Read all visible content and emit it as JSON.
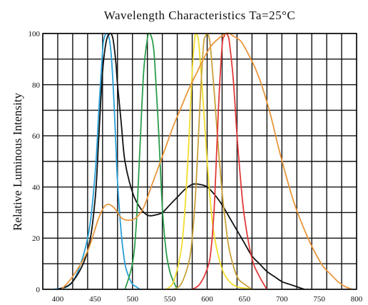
{
  "chart_data": {
    "type": "line",
    "title": "Wavelength Characteristics Ta=25°C",
    "xlabel": "",
    "ylabel": "Relative Luminous Intensity",
    "xlim": [
      380,
      800
    ],
    "ylim": [
      0,
      100
    ],
    "x_gridlines": [
      380,
      400,
      420,
      440,
      460,
      480,
      500,
      520,
      540,
      560,
      580,
      600,
      620,
      640,
      660,
      680,
      700,
      720,
      740,
      760,
      780,
      800
    ],
    "x_ticks": [
      {
        "value": 400,
        "label": "400"
      },
      {
        "value": 450,
        "label": "450"
      },
      {
        "value": 500,
        "label": "500"
      },
      {
        "value": 550,
        "label": "550"
      },
      {
        "value": 600,
        "label": "600"
      },
      {
        "value": 650,
        "label": "650"
      },
      {
        "value": 700,
        "label": "700"
      },
      {
        "value": 750,
        "label": "750"
      },
      {
        "value": 800,
        "label": "800"
      }
    ],
    "y_gridlines": [
      0,
      10,
      20,
      30,
      40,
      50,
      60,
      70,
      80,
      90,
      100
    ],
    "y_ticks": [
      {
        "value": 0,
        "label": "0"
      },
      {
        "value": 20,
        "label": "20"
      },
      {
        "value": 40,
        "label": "40"
      },
      {
        "value": 60,
        "label": "60"
      },
      {
        "value": 80,
        "label": "80"
      },
      {
        "value": 100,
        "label": "100"
      }
    ],
    "grid": true,
    "series": [
      {
        "color": "#2a9fd6",
        "x": [
          395,
          420,
          440,
          450,
          455,
          460,
          462,
          465,
          468,
          470,
          472,
          475,
          478,
          480,
          485,
          490,
          495,
          500,
          505,
          510
        ],
        "y": [
          0,
          3,
          20,
          45,
          70,
          93,
          98,
          100,
          99,
          96,
          90,
          75,
          55,
          42,
          22,
          10,
          5,
          2,
          1,
          0
        ]
      },
      {
        "color": "#111111",
        "x": [
          400,
          420,
          440,
          450,
          455,
          460,
          465,
          470,
          473,
          475,
          478,
          480,
          485,
          490,
          500,
          510,
          520,
          530,
          540,
          550,
          560,
          570,
          580,
          590,
          600,
          610,
          620,
          630,
          640,
          650,
          660,
          670,
          680,
          690,
          700,
          710,
          720,
          730
        ],
        "y": [
          0,
          3,
          15,
          35,
          60,
          85,
          97,
          100,
          99,
          96,
          88,
          80,
          65,
          50,
          38,
          32,
          29,
          29,
          30,
          33,
          36,
          39,
          41,
          41,
          40,
          37,
          33,
          28,
          23,
          18,
          13,
          10,
          7,
          5,
          3,
          2,
          1,
          0
        ]
      },
      {
        "color": "#2a9d4a",
        "x": [
          490,
          500,
          505,
          510,
          515,
          520,
          522,
          525,
          528,
          530,
          535,
          540,
          545,
          550,
          555,
          560
        ],
        "y": [
          0,
          10,
          25,
          55,
          85,
          98,
          100,
          99,
          95,
          88,
          62,
          32,
          15,
          7,
          3,
          0
        ]
      },
      {
        "color": "#f2dd2c",
        "x": [
          545,
          555,
          565,
          570,
          575,
          580,
          583,
          585,
          588,
          590,
          595,
          600,
          605,
          610,
          620,
          630,
          640,
          650,
          660
        ],
        "y": [
          0,
          3,
          15,
          30,
          55,
          85,
          97,
          100,
          98,
          92,
          72,
          50,
          32,
          20,
          8,
          3,
          1,
          0.5,
          0
        ]
      },
      {
        "color": "#c9a13a",
        "x": [
          555,
          565,
          575,
          580,
          585,
          590,
          595,
          598,
          600,
          603,
          605,
          610,
          615,
          620,
          625,
          630,
          640,
          650,
          660
        ],
        "y": [
          0,
          2,
          10,
          20,
          40,
          70,
          95,
          99,
          100,
          98,
          93,
          75,
          55,
          38,
          25,
          15,
          5,
          2,
          0
        ]
      },
      {
        "color": "#e23a3a",
        "x": [
          580,
          590,
          600,
          605,
          610,
          615,
          620,
          623,
          625,
          628,
          630,
          635,
          640,
          645,
          650,
          660,
          670,
          680
        ],
        "y": [
          0,
          2,
          8,
          15,
          35,
          70,
          95,
          99,
          100,
          99,
          96,
          82,
          60,
          42,
          28,
          12,
          5,
          0
        ]
      },
      {
        "color": "#e8963a",
        "x": [
          405,
          420,
          440,
          455,
          465,
          475,
          485,
          495,
          505,
          515,
          525,
          535,
          545,
          555,
          565,
          575,
          585,
          595,
          605,
          615,
          625,
          630,
          635,
          645,
          655,
          665,
          675,
          685,
          695,
          705,
          715,
          725,
          735,
          745,
          755,
          765,
          775,
          785,
          795
        ],
        "y": [
          0,
          5,
          15,
          28,
          33,
          32,
          28,
          27,
          28,
          32,
          40,
          48,
          56,
          64,
          71,
          78,
          84,
          90,
          95,
          98,
          100,
          100,
          99,
          97,
          92,
          86,
          78,
          68,
          56,
          45,
          35,
          27,
          20,
          14,
          9,
          6,
          3,
          1,
          0
        ]
      }
    ]
  }
}
